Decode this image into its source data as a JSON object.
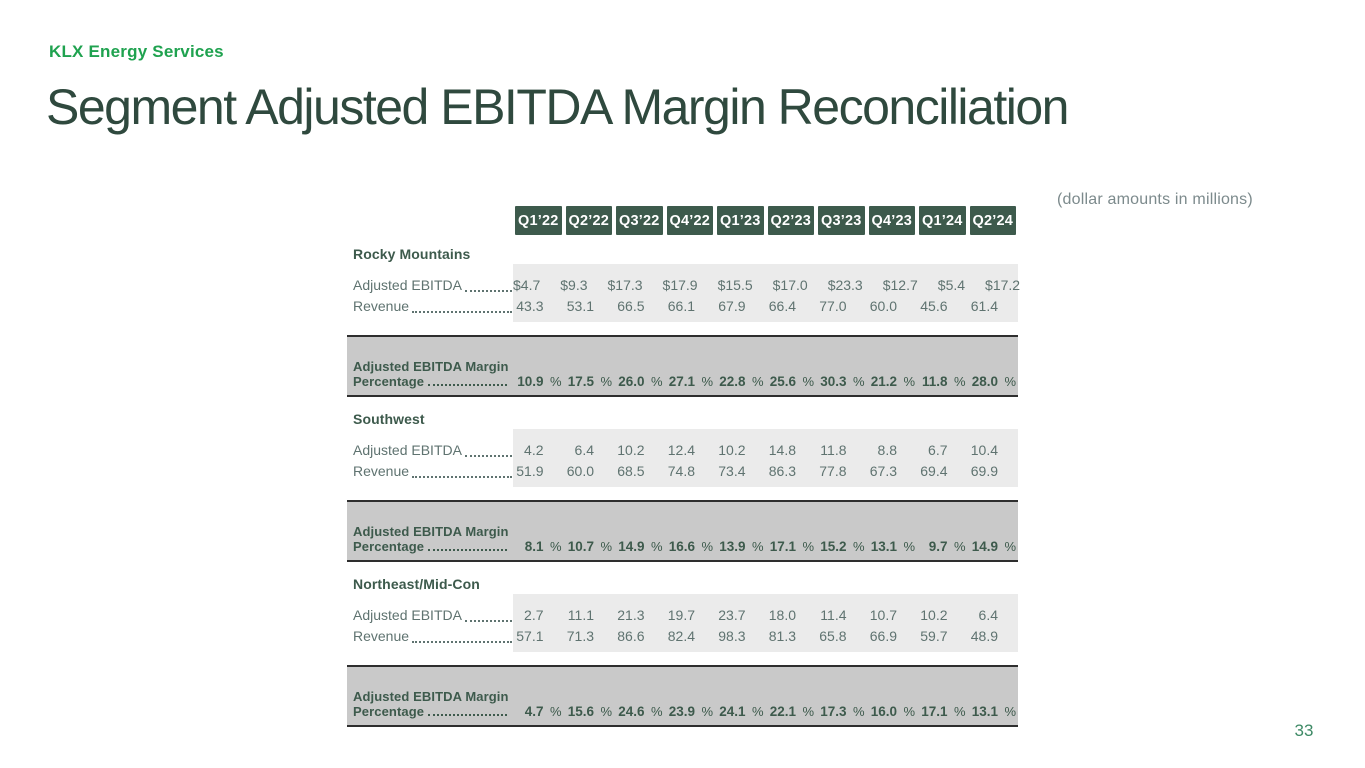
{
  "brand": {
    "name": "KLX Energy Services"
  },
  "title": "Segment Adjusted EBITDA Margin Reconciliation",
  "note": "(dollar amounts in millions)",
  "page_number": "33",
  "colors": {
    "brand_green": "#1fa24f",
    "dark_green": "#3d5a4c",
    "body_text": "#5f7370",
    "light_band": "#ebebeb",
    "dark_band": "#c9c9c9",
    "title_color": "#2f493e",
    "note_gray": "#7c8a8c",
    "page_green": "#3e8a66"
  },
  "table": {
    "quarters": [
      "Q1’22",
      "Q2’22",
      "Q3’22",
      "Q4’22",
      "Q1’23",
      "Q2’23",
      "Q3’23",
      "Q4’23",
      "Q1’24",
      "Q2’24"
    ],
    "sections": [
      {
        "name": "Rocky Mountains",
        "rows": [
          {
            "label": "Adjusted EBITDA",
            "values": [
              "$4.7",
              "$9.3",
              "$17.3",
              "$17.9",
              "$15.5",
              "$17.0",
              "$23.3",
              "$12.7",
              "$5.4",
              "$17.2"
            ]
          },
          {
            "label": "Revenue",
            "values": [
              "43.3",
              "53.1",
              "66.5",
              "66.1",
              "67.9",
              "66.4",
              "77.0",
              "60.0",
              "45.6",
              "61.4"
            ]
          }
        ],
        "margin": {
          "label_line1": "Adjusted EBITDA Margin",
          "label_line2": "Percentage",
          "suffix": "%",
          "values": [
            "10.9",
            "17.5",
            "26.0",
            "27.1",
            "22.8",
            "25.6",
            "30.3",
            "21.2",
            "11.8",
            "28.0"
          ]
        }
      },
      {
        "name": "Southwest",
        "rows": [
          {
            "label": "Adjusted EBITDA",
            "values": [
              "4.2",
              "6.4",
              "10.2",
              "12.4",
              "10.2",
              "14.8",
              "11.8",
              "8.8",
              "6.7",
              "10.4"
            ]
          },
          {
            "label": "Revenue",
            "values": [
              "51.9",
              "60.0",
              "68.5",
              "74.8",
              "73.4",
              "86.3",
              "77.8",
              "67.3",
              "69.4",
              "69.9"
            ]
          }
        ],
        "margin": {
          "label_line1": "Adjusted EBITDA Margin",
          "label_line2": "Percentage",
          "suffix": "%",
          "values": [
            "8.1",
            "10.7",
            "14.9",
            "16.6",
            "13.9",
            "17.1",
            "15.2",
            "13.1",
            "9.7",
            "14.9"
          ]
        }
      },
      {
        "name": "Northeast/Mid-Con",
        "rows": [
          {
            "label": "Adjusted EBITDA",
            "values": [
              "2.7",
              "11.1",
              "21.3",
              "19.7",
              "23.7",
              "18.0",
              "11.4",
              "10.7",
              "10.2",
              "6.4"
            ]
          },
          {
            "label": "Revenue",
            "values": [
              "57.1",
              "71.3",
              "86.6",
              "82.4",
              "98.3",
              "81.3",
              "65.8",
              "66.9",
              "59.7",
              "48.9"
            ]
          }
        ],
        "margin": {
          "label_line1": "Adjusted EBITDA Margin",
          "label_line2": "Percentage",
          "suffix": "%",
          "values": [
            "4.7",
            "15.6",
            "24.6",
            "23.9",
            "24.1",
            "22.1",
            "17.3",
            "16.0",
            "17.1",
            "13.1"
          ]
        }
      }
    ]
  }
}
